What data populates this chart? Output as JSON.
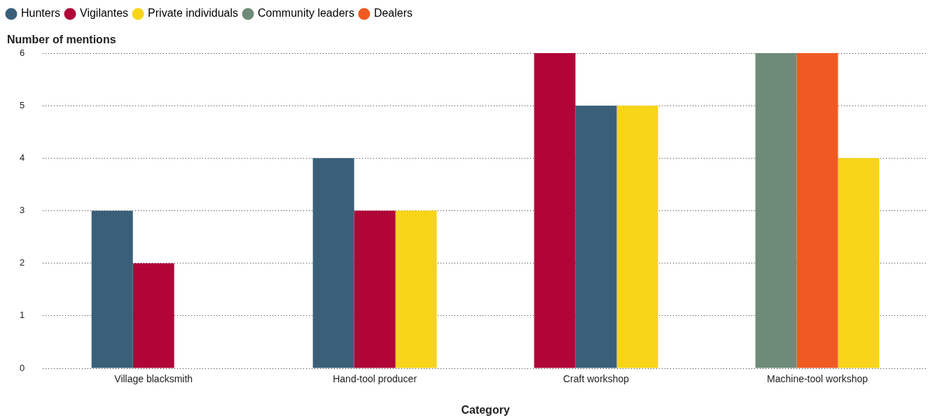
{
  "chart_data": {
    "type": "bar",
    "xlabel": "Category",
    "ylabel": "Number of mentions",
    "categories": [
      "Village blacksmith",
      "Hand-tool producer",
      "Craft workshop",
      "Machine-tool workshop"
    ],
    "series": [
      {
        "name": "Hunters",
        "color": "#3a6079",
        "values": [
          3,
          4,
          5,
          null
        ]
      },
      {
        "name": "Vigilantes",
        "color": "#b00536",
        "values": [
          2,
          3,
          6,
          null
        ]
      },
      {
        "name": "Private individuals",
        "color": "#f8d518",
        "values": [
          null,
          3,
          5,
          4
        ]
      },
      {
        "name": "Community leaders",
        "color": "#6e8b78",
        "values": [
          null,
          null,
          null,
          6
        ]
      },
      {
        "name": "Dealers",
        "color": "#f05a22",
        "values": [
          null,
          null,
          null,
          6
        ]
      }
    ],
    "ylim": [
      0,
      6
    ],
    "yticks": [
      0,
      1,
      2,
      3,
      4,
      5,
      6
    ],
    "grid": "y",
    "legend": "top left"
  }
}
